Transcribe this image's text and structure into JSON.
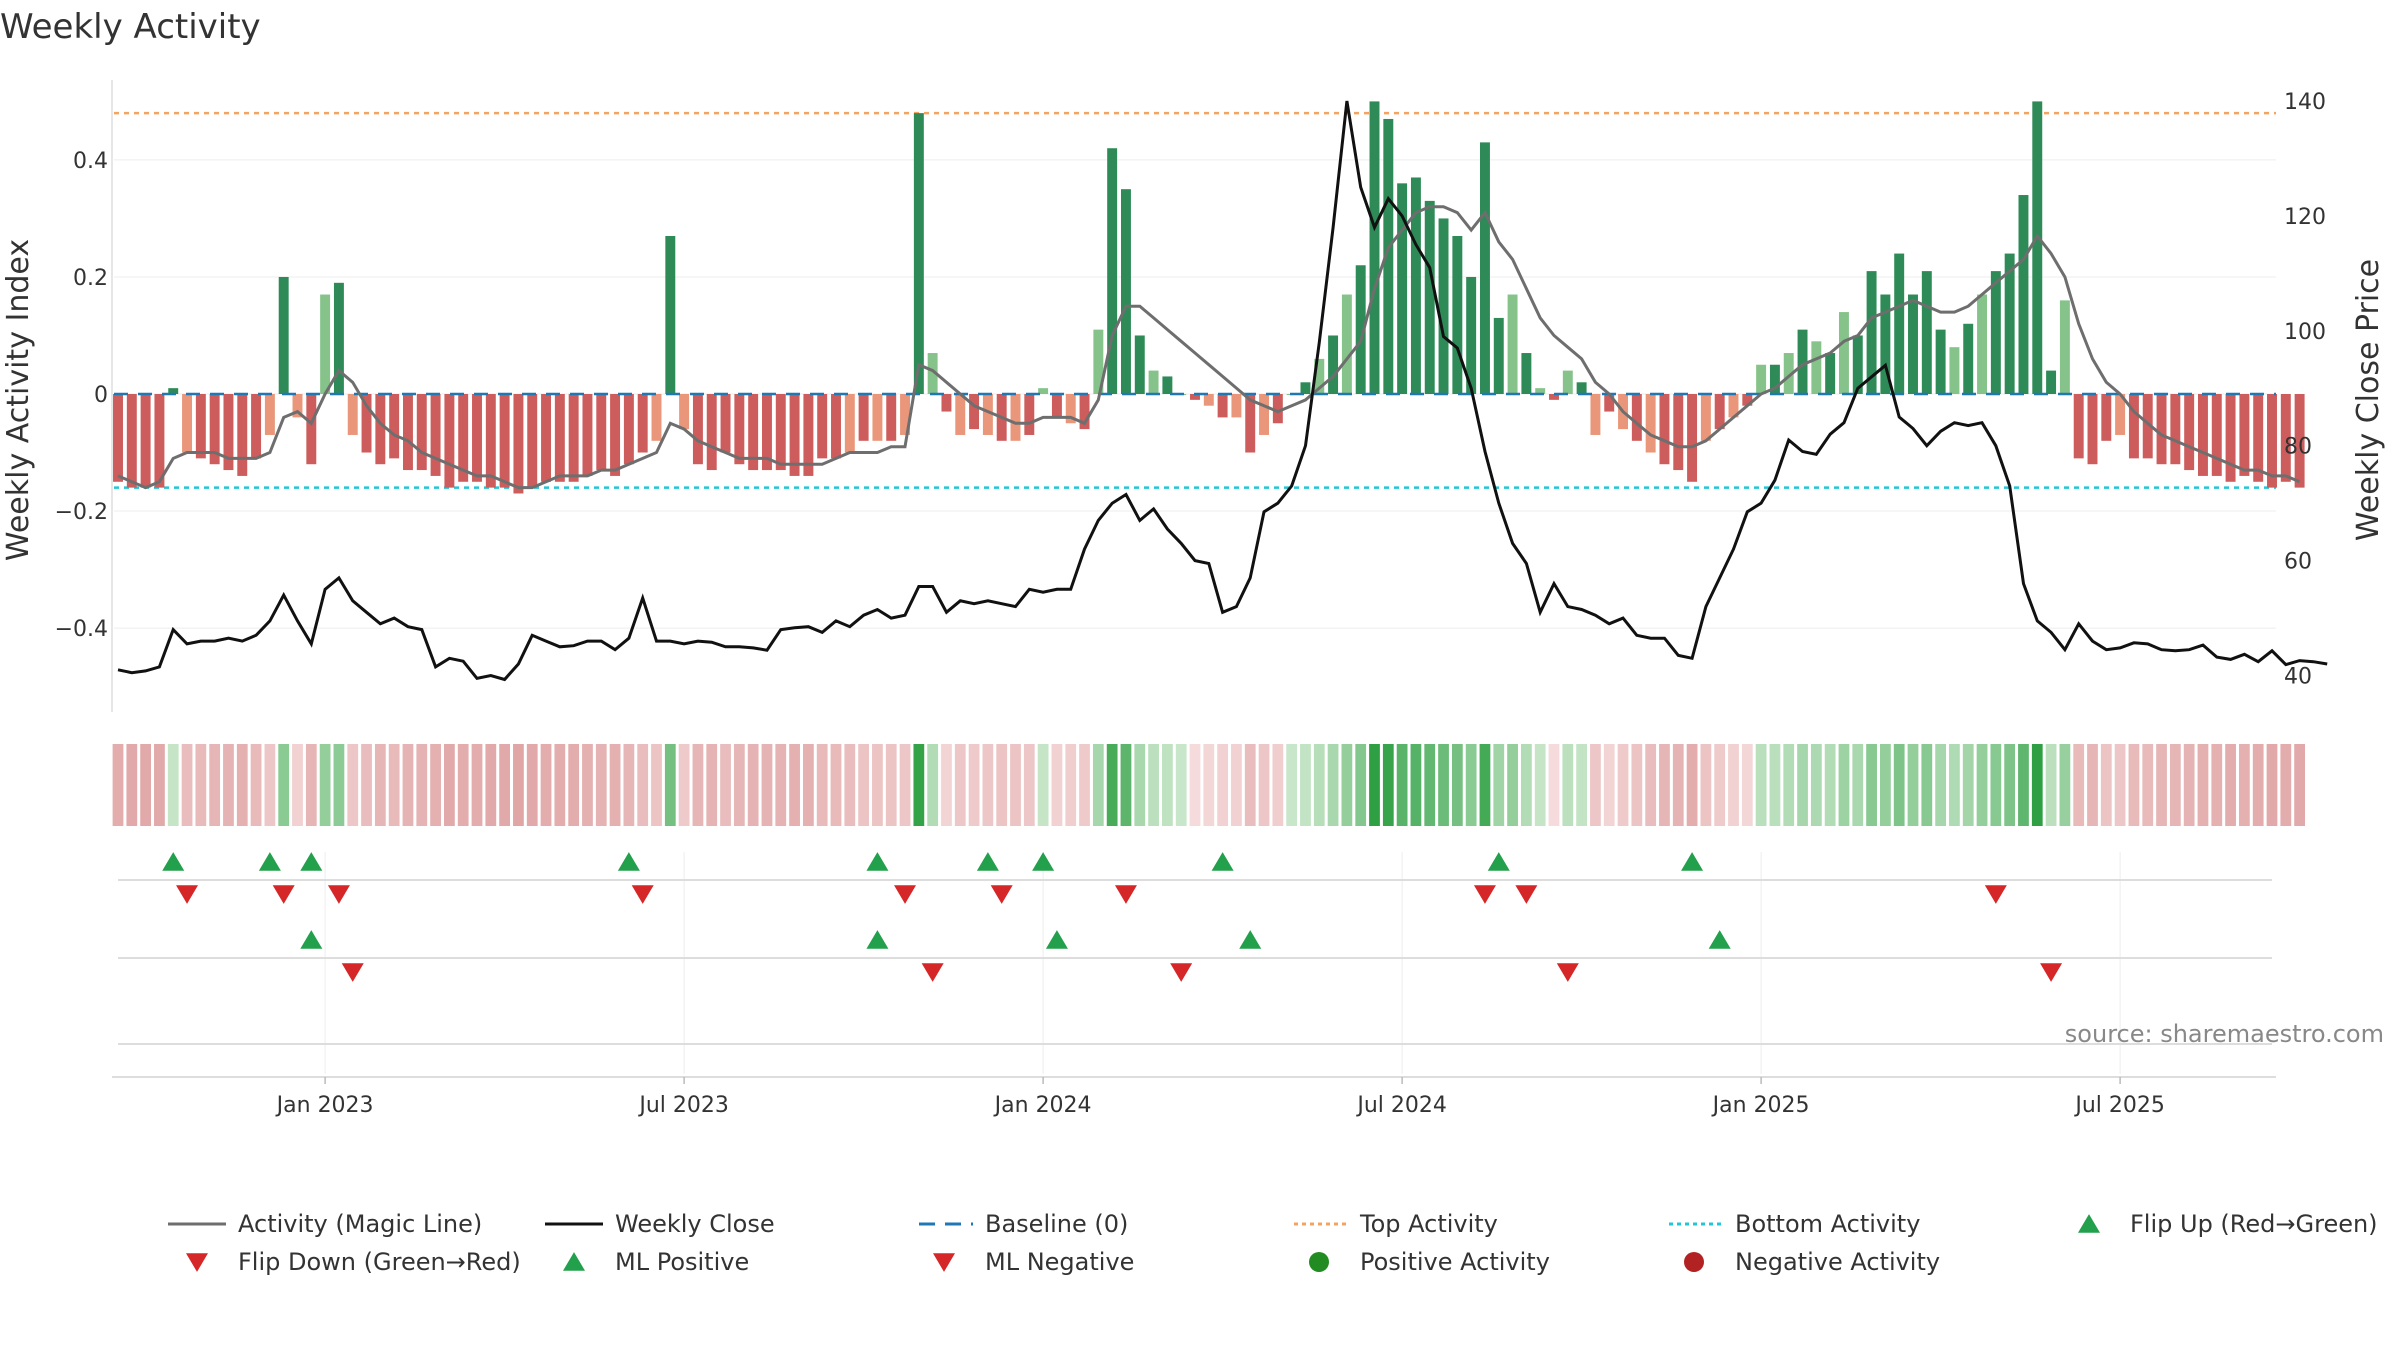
{
  "chart_data": {
    "type": "bar",
    "title": "Weekly Activity",
    "ylabel_left": "Weekly Activity Index",
    "ylabel_right": "Weekly Close Price",
    "source": "source: sharemaestro.com",
    "left_axis": {
      "ylim": [
        -0.54,
        0.54
      ],
      "ticks": [
        0.4,
        0.2,
        0,
        -0.2,
        -0.4
      ],
      "tick_labels": [
        "0.4",
        "0.2",
        "0",
        "−0.2",
        "−0.4"
      ]
    },
    "right_axis": {
      "ylim": [
        34,
        144
      ],
      "ticks": [
        140,
        120,
        100,
        80,
        60,
        40
      ],
      "tick_labels": [
        "140",
        "120",
        "100",
        "80",
        "60",
        "40"
      ]
    },
    "x_ticks": [
      {
        "label": "Jan 2023",
        "week": 15
      },
      {
        "label": "Jul 2023",
        "week": 41
      },
      {
        "label": "Jan 2024",
        "week": 67
      },
      {
        "label": "Jul 2024",
        "week": 93
      },
      {
        "label": "Jan 2025",
        "week": 119
      },
      {
        "label": "Jul 2025",
        "week": 145
      }
    ],
    "top_activity": 0.48,
    "bottom_activity": -0.16,
    "baseline": 0,
    "weeks": 157,
    "activity": [
      -0.15,
      -0.16,
      -0.16,
      -0.16,
      0.01,
      -0.1,
      -0.11,
      -0.12,
      -0.13,
      -0.14,
      -0.11,
      -0.07,
      0.2,
      -0.04,
      -0.12,
      0.17,
      0.19,
      -0.07,
      -0.1,
      -0.12,
      -0.11,
      -0.13,
      -0.13,
      -0.14,
      -0.16,
      -0.15,
      -0.15,
      -0.16,
      -0.16,
      -0.17,
      -0.16,
      -0.15,
      -0.15,
      -0.15,
      -0.14,
      -0.13,
      -0.14,
      -0.12,
      -0.1,
      -0.08,
      0.27,
      -0.06,
      -0.12,
      -0.13,
      -0.1,
      -0.12,
      -0.13,
      -0.13,
      -0.13,
      -0.14,
      -0.14,
      -0.11,
      -0.11,
      -0.1,
      -0.08,
      -0.08,
      -0.08,
      -0.07,
      0.48,
      0.07,
      -0.03,
      -0.07,
      -0.06,
      -0.07,
      -0.08,
      -0.08,
      -0.07,
      0.01,
      -0.04,
      -0.05,
      -0.06,
      0.11,
      0.42,
      0.35,
      0.1,
      0.04,
      0.03,
      0.0,
      -0.01,
      -0.02,
      -0.04,
      -0.04,
      -0.1,
      -0.07,
      -0.05,
      0.0,
      0.02,
      0.06,
      0.1,
      0.17,
      0.22,
      0.5,
      0.47,
      0.36,
      0.37,
      0.33,
      0.3,
      0.27,
      0.2,
      0.43,
      0.13,
      0.17,
      0.07,
      0.01,
      -0.01,
      0.04,
      0.02,
      -0.07,
      -0.03,
      -0.06,
      -0.08,
      -0.1,
      -0.12,
      -0.13,
      -0.15,
      -0.08,
      -0.06,
      -0.04,
      -0.02,
      0.05,
      0.05,
      0.07,
      0.11,
      0.09,
      0.07,
      0.14,
      0.1,
      0.21,
      0.17,
      0.24,
      0.17,
      0.21,
      0.11,
      0.08,
      0.12,
      0.17,
      0.21,
      0.24,
      0.34,
      0.5,
      0.04,
      0.16,
      -0.11,
      -0.12,
      -0.08,
      -0.07,
      -0.11,
      -0.11,
      -0.12,
      -0.12,
      -0.13,
      -0.14,
      -0.14,
      -0.15,
      -0.14,
      -0.15,
      -0.16,
      -0.15,
      -0.16
    ],
    "magic_line": [
      -0.14,
      -0.15,
      -0.16,
      -0.15,
      -0.11,
      -0.1,
      -0.1,
      -0.1,
      -0.11,
      -0.11,
      -0.11,
      -0.1,
      -0.04,
      -0.03,
      -0.05,
      0.0,
      0.04,
      0.02,
      -0.02,
      -0.05,
      -0.07,
      -0.08,
      -0.1,
      -0.11,
      -0.12,
      -0.13,
      -0.14,
      -0.14,
      -0.15,
      -0.16,
      -0.16,
      -0.15,
      -0.14,
      -0.14,
      -0.14,
      -0.13,
      -0.13,
      -0.12,
      -0.11,
      -0.1,
      -0.05,
      -0.06,
      -0.08,
      -0.09,
      -0.1,
      -0.11,
      -0.11,
      -0.11,
      -0.12,
      -0.12,
      -0.12,
      -0.12,
      -0.11,
      -0.1,
      -0.1,
      -0.1,
      -0.09,
      -0.09,
      0.05,
      0.04,
      0.02,
      0.0,
      -0.02,
      -0.03,
      -0.04,
      -0.05,
      -0.05,
      -0.04,
      -0.04,
      -0.04,
      -0.05,
      -0.01,
      0.1,
      0.15,
      0.15,
      0.13,
      0.11,
      0.09,
      0.07,
      0.05,
      0.03,
      0.01,
      -0.01,
      -0.02,
      -0.03,
      -0.02,
      -0.01,
      0.01,
      0.03,
      0.06,
      0.09,
      0.18,
      0.25,
      0.28,
      0.31,
      0.32,
      0.32,
      0.31,
      0.28,
      0.31,
      0.26,
      0.23,
      0.18,
      0.13,
      0.1,
      0.08,
      0.06,
      0.02,
      0.0,
      -0.03,
      -0.05,
      -0.07,
      -0.08,
      -0.09,
      -0.09,
      -0.08,
      -0.06,
      -0.04,
      -0.02,
      0.0,
      0.01,
      0.03,
      0.05,
      0.06,
      0.07,
      0.09,
      0.1,
      0.13,
      0.14,
      0.15,
      0.16,
      0.15,
      0.14,
      0.14,
      0.15,
      0.17,
      0.19,
      0.21,
      0.23,
      0.27,
      0.24,
      0.2,
      0.12,
      0.06,
      0.02,
      0.0,
      -0.03,
      -0.05,
      -0.07,
      -0.08,
      -0.09,
      -0.1,
      -0.11,
      -0.12,
      -0.13,
      -0.13,
      -0.14,
      -0.14,
      -0.15
    ],
    "weekly_close": [
      41,
      40.5,
      40.8,
      41.5,
      48,
      45.5,
      46,
      46,
      46.5,
      46,
      47,
      49.5,
      54,
      49.5,
      45.5,
      55,
      57,
      53,
      51,
      49,
      50,
      48.5,
      48,
      41.5,
      43,
      42.5,
      39.5,
      40,
      39.3,
      42,
      47,
      46,
      45,
      45.2,
      46,
      46,
      44.5,
      46.5,
      53.5,
      46,
      46,
      45.5,
      46,
      45.8,
      45,
      45,
      44.8,
      44.4,
      48,
      48.3,
      48.5,
      47.5,
      49.5,
      48.5,
      50.5,
      51.5,
      50,
      50.5,
      55.5,
      55.5,
      51,
      53,
      52.5,
      53,
      52.5,
      52,
      55,
      54.5,
      55,
      55,
      62,
      67,
      70,
      71.5,
      67,
      69,
      65.5,
      63,
      60,
      59.5,
      51,
      52,
      57,
      68.5,
      70,
      73,
      80,
      98,
      118,
      140,
      125,
      118,
      123,
      120,
      115,
      111,
      99,
      97,
      90,
      79,
      70,
      63,
      59.5,
      51,
      56,
      52,
      51.5,
      50.5,
      49,
      50,
      47,
      46.5,
      46.5,
      43.5,
      43,
      52,
      57,
      62,
      68.5,
      70,
      74,
      81,
      79,
      78.5,
      82,
      84,
      90,
      92,
      94,
      85,
      83,
      80,
      82.5,
      84,
      83.5,
      84,
      80,
      73,
      56,
      49.5,
      47.5,
      44.5,
      49,
      46,
      44.5,
      44.8,
      45.7,
      45.5,
      44.5,
      44.3,
      44.5,
      45.3,
      43.2,
      42.8,
      43.7,
      42.4,
      44.3,
      41.9,
      42.6,
      42.4,
      42
    ],
    "strip": [
      -0.15,
      -0.16,
      -0.16,
      -0.16,
      0.01,
      -0.1,
      -0.11,
      -0.12,
      -0.13,
      -0.14,
      -0.11,
      -0.07,
      0.2,
      -0.04,
      -0.12,
      0.17,
      0.19,
      -0.07,
      -0.1,
      -0.12,
      -0.11,
      -0.13,
      -0.13,
      -0.14,
      -0.16,
      -0.15,
      -0.15,
      -0.16,
      -0.16,
      -0.17,
      -0.16,
      -0.15,
      -0.15,
      -0.15,
      -0.14,
      -0.13,
      -0.14,
      -0.12,
      -0.1,
      -0.08,
      0.27,
      -0.06,
      -0.12,
      -0.13,
      -0.1,
      -0.12,
      -0.13,
      -0.13,
      -0.13,
      -0.14,
      -0.14,
      -0.11,
      -0.11,
      -0.1,
      -0.08,
      -0.08,
      -0.08,
      -0.07,
      0.48,
      0.07,
      -0.03,
      -0.07,
      -0.06,
      -0.07,
      -0.08,
      -0.08,
      -0.07,
      0.01,
      -0.04,
      -0.05,
      -0.06,
      0.11,
      0.42,
      0.35,
      0.1,
      0.04,
      0.03,
      0.0,
      -0.01,
      -0.02,
      -0.04,
      -0.04,
      -0.1,
      -0.07,
      -0.05,
      0.0,
      0.02,
      0.06,
      0.1,
      0.17,
      0.22,
      0.5,
      0.47,
      0.36,
      0.37,
      0.33,
      0.3,
      0.27,
      0.2,
      0.43,
      0.13,
      0.17,
      0.07,
      0.01,
      -0.01,
      0.04,
      0.02,
      -0.07,
      -0.03,
      -0.06,
      -0.08,
      -0.1,
      -0.12,
      -0.13,
      -0.15,
      -0.08,
      -0.06,
      -0.04,
      -0.02,
      0.05,
      0.05,
      0.07,
      0.11,
      0.09,
      0.07,
      0.14,
      0.1,
      0.21,
      0.17,
      0.24,
      0.17,
      0.21,
      0.11,
      0.08,
      0.12,
      0.17,
      0.21,
      0.24,
      0.34,
      0.5,
      0.04,
      0.16,
      -0.11,
      -0.12,
      -0.08,
      -0.07,
      -0.11,
      -0.11,
      -0.12,
      -0.12,
      -0.13,
      -0.14,
      -0.14,
      -0.15,
      -0.14,
      -0.15,
      -0.16,
      -0.15,
      -0.16
    ],
    "flip_up_weeks": [
      4,
      11,
      14,
      37,
      55,
      63,
      67,
      80,
      100,
      114
    ],
    "flip_down_weeks": [
      5,
      12,
      16,
      38,
      57,
      64,
      73,
      99,
      102,
      136
    ],
    "ml_positive_weeks": [
      14,
      55,
      68,
      82,
      116
    ],
    "ml_negative_weeks": [
      17,
      59,
      77,
      105,
      140
    ],
    "legend": [
      {
        "label": "Activity (Magic Line)",
        "symbol": "line",
        "color": "#6e6e6e"
      },
      {
        "label": "Weekly Close",
        "symbol": "line",
        "color": "#111111"
      },
      {
        "label": "Baseline (0)",
        "symbol": "dash",
        "color": "#1f77b4"
      },
      {
        "label": "Top Activity",
        "symbol": "dot-line",
        "color": "#f4a460"
      },
      {
        "label": "Bottom Activity",
        "symbol": "dot-line",
        "color": "#22c7d6"
      },
      {
        "label": "Flip Up (Red→Green)",
        "symbol": "tri-up",
        "color": "#22a04b"
      },
      {
        "label": "Flip Down (Green→Red)",
        "symbol": "tri-down",
        "color": "#d62728"
      },
      {
        "label": "ML Positive",
        "symbol": "tri-up",
        "color": "#22a04b"
      },
      {
        "label": "ML Negative",
        "symbol": "tri-down",
        "color": "#d62728"
      },
      {
        "label": "Positive Activity",
        "symbol": "circle",
        "color": "#228b22"
      },
      {
        "label": "Negative Activity",
        "symbol": "circle",
        "color": "#b22222"
      }
    ],
    "colors": {
      "pos_strong": "#2e8b57",
      "pos_light": "#86c38a",
      "neg_strong": "#cd5c5c",
      "neg_light": "#e9967a",
      "magic_line": "#6e6e6e",
      "close_line": "#111111",
      "baseline": "#1f77b4",
      "top": "#f4a460",
      "bottom": "#22c7d6",
      "up": "#22a04b",
      "down": "#d62728"
    }
  }
}
